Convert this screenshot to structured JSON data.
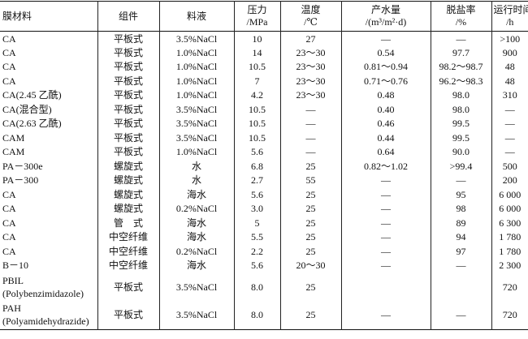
{
  "table": {
    "header": [
      [
        "膜材料"
      ],
      [
        "组件"
      ],
      [
        "料液"
      ],
      [
        "压力",
        "/MPa"
      ],
      [
        "温度",
        "/℃"
      ],
      [
        "产水量",
        "/(m³/m²·d)"
      ],
      [
        "脱盐率",
        "/%"
      ],
      [
        "运行时间",
        "/h"
      ]
    ],
    "rows": [
      [
        [
          "CA"
        ],
        "平板式",
        "3.5%NaCl",
        "10",
        "27",
        "—",
        "—",
        ">100"
      ],
      [
        [
          "CA"
        ],
        "平板式",
        "1.0%NaCl",
        "14",
        "23～30",
        "0.54",
        "97.7",
        "900"
      ],
      [
        [
          "CA"
        ],
        "平板式",
        "1.0%NaCl",
        "10.5",
        "23～30",
        "0.81～0.94",
        "98.2～98.7",
        "48"
      ],
      [
        [
          "CA"
        ],
        "平板式",
        "1.0%NaCl",
        "7",
        "23～30",
        "0.71～0.76",
        "96.2～98.3",
        "48"
      ],
      [
        [
          "CA(2.45 乙酰)"
        ],
        "平板式",
        "1.0%NaCl",
        "4.2",
        "23～30",
        "0.48",
        "98.0",
        "310"
      ],
      [
        [
          "CA(混合型)"
        ],
        "平板式",
        "3.5%NaCl",
        "10.5",
        "—",
        "0.40",
        "98.0",
        "—"
      ],
      [
        [
          "CA(2.63 乙酰)"
        ],
        "平板式",
        "3.5%NaCl",
        "10.5",
        "—",
        "0.46",
        "99.5",
        "—"
      ],
      [
        [
          "CAM"
        ],
        "平板式",
        "3.5%NaCl",
        "10.5",
        "—",
        "0.44",
        "99.5",
        "—"
      ],
      [
        [
          "CAM"
        ],
        "平板式",
        "1.0%NaCl",
        "5.6",
        "—",
        "0.64",
        "90.0",
        "—"
      ],
      [
        [
          "PA－300e"
        ],
        "螺旋式",
        "水",
        "6.8",
        "25",
        "0.82～1.02",
        ">99.4",
        "500"
      ],
      [
        [
          "PA－300"
        ],
        "螺旋式",
        "水",
        "2.7",
        "55",
        "—",
        "—",
        "200"
      ],
      [
        [
          "CA"
        ],
        "螺旋式",
        "海水",
        "5.6",
        "25",
        "—",
        "95",
        "6 000"
      ],
      [
        [
          "CA"
        ],
        "螺旋式",
        "0.2%NaCl",
        "3.0",
        "25",
        "—",
        "98",
        "6 000"
      ],
      [
        [
          "CA"
        ],
        "管　式",
        "海水",
        "5",
        "25",
        "—",
        "89",
        "6 300"
      ],
      [
        [
          "CA"
        ],
        "中空纤维",
        "海水",
        "5.5",
        "25",
        "—",
        "94",
        "1 780"
      ],
      [
        [
          "CA"
        ],
        "中空纤维",
        "0.2%NaCl",
        "2.2",
        "25",
        "—",
        "97",
        "1 780"
      ],
      [
        [
          "B－10"
        ],
        "中空纤维",
        "海水",
        "5.6",
        "20～30",
        "—",
        "—",
        "2 300"
      ],
      [
        [
          "PBIL",
          "(Polybenzimidazole)"
        ],
        "平板式",
        "3.5%NaCl",
        "8.0",
        "25",
        null,
        null,
        "720"
      ],
      [
        [
          "PAH",
          "(Polyamidehydrazide)"
        ],
        "平板式",
        "3.5%NaCl",
        "8.0",
        "25",
        "—",
        "—",
        "720"
      ]
    ]
  }
}
